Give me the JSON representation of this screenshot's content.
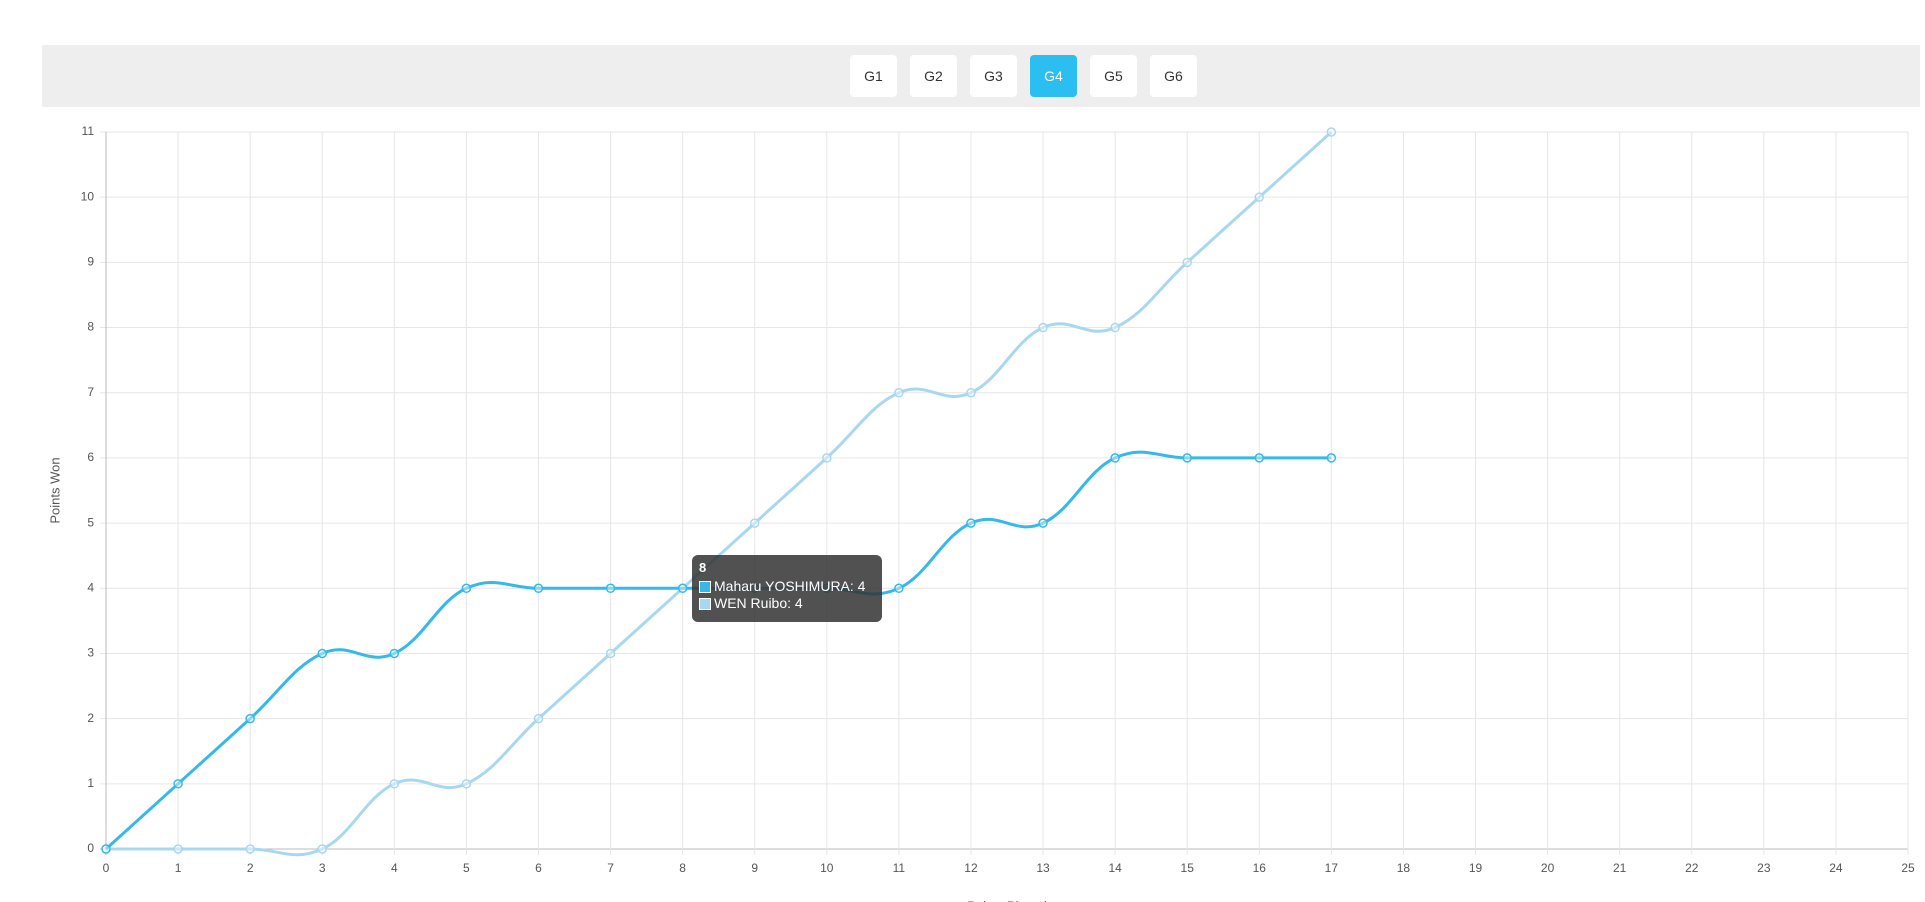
{
  "tabs": {
    "items": [
      "G1",
      "G2",
      "G3",
      "G4",
      "G5",
      "G6"
    ],
    "active": 3
  },
  "chart_data": {
    "type": "line",
    "x_label": "Points Played",
    "y_label": "Points Won",
    "x": [
      0,
      1,
      2,
      3,
      4,
      5,
      6,
      7,
      8,
      9,
      10,
      11,
      12,
      13,
      14,
      15,
      16,
      17
    ],
    "series": [
      {
        "name": "Maharu YOSHIMURA",
        "color": "#36b9e8",
        "values": [
          0,
          1,
          2,
          3,
          3,
          4,
          4,
          4,
          4,
          4,
          4,
          4,
          5,
          5,
          6,
          6,
          6,
          6
        ]
      },
      {
        "name": "WEN Ruibo",
        "color": "#a8d8ef",
        "values": [
          0,
          0,
          0,
          0,
          1,
          1,
          2,
          3,
          4,
          5,
          6,
          7,
          7,
          8,
          8,
          9,
          10,
          11
        ]
      }
    ],
    "xlim": [
      0,
      25
    ],
    "xticks": [
      0,
      1,
      2,
      3,
      4,
      5,
      6,
      7,
      8,
      9,
      10,
      11,
      12,
      13,
      14,
      15,
      16,
      17,
      18,
      19,
      20,
      21,
      22,
      23,
      24,
      25
    ],
    "ylim": [
      0,
      11
    ],
    "yticks": [
      0,
      1,
      2,
      3,
      4,
      5,
      6,
      7,
      8,
      9,
      10,
      11
    ],
    "grid": true,
    "tooltip": {
      "title": "8",
      "lines": [
        "Maharu YOSHIMURA: 4",
        "WEN Ruibo: 4"
      ]
    }
  }
}
